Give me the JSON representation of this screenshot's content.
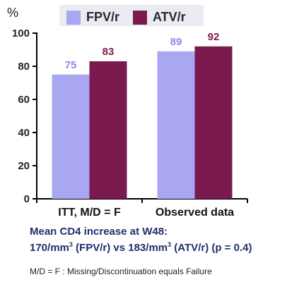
{
  "chart_data": {
    "type": "bar",
    "title": "",
    "xlabel": "",
    "ylabel": "%",
    "ylim": [
      0,
      100
    ],
    "yticks": [
      0,
      20,
      40,
      60,
      80,
      100
    ],
    "categories": [
      "ITT, M/D = F",
      "Observed data"
    ],
    "series": [
      {
        "name": "FPV/r",
        "values": [
          75,
          89
        ],
        "color": "#a9a6f2",
        "label_color": "#8e8ae6"
      },
      {
        "name": "ATV/r",
        "values": [
          83,
          92
        ],
        "color": "#7a1a4e",
        "label_color": "#7a1a4e"
      }
    ],
    "grid": false,
    "legend_position": "top"
  },
  "notes": {
    "line1": "Mean CD4 increase at W48:",
    "line2_a": "170/mm",
    "line2_sup1": "3",
    "line2_b": " (FPV/r) vs 183/mm",
    "line2_sup2": "3",
    "line2_c": " (ATV/r) (p = 0.4)"
  },
  "footnote": "M/D = F : Missing/Discontinuation equals Failure"
}
